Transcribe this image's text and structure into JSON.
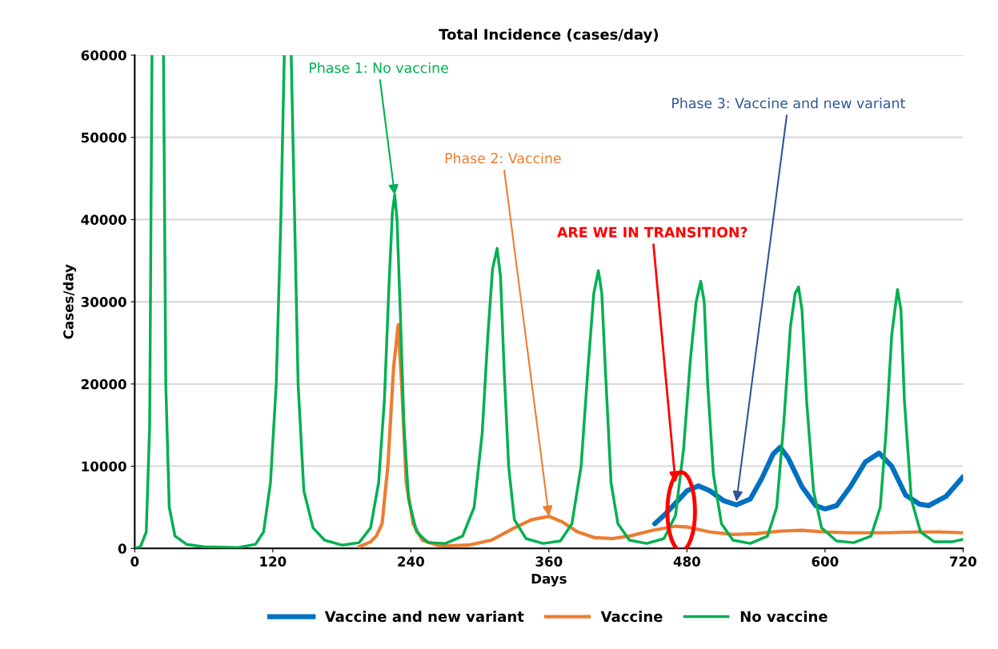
{
  "chart_data": {
    "type": "line",
    "title": "Total Incidence (cases/day)",
    "xlabel": "Days",
    "ylabel": "Cases/day",
    "xlim": [
      0,
      720
    ],
    "xticks": [
      0,
      120,
      240,
      360,
      480,
      600,
      720
    ],
    "ylim": [
      0,
      60000
    ],
    "yticks": [
      0,
      10000,
      20000,
      30000,
      40000,
      50000,
      60000
    ],
    "grid": "y",
    "legend": "bottom",
    "line_style": "solid",
    "marker": "none",
    "annotations": [
      {
        "text": "Phase 1: No vaccine",
        "x": 226,
        "y": 43000
      },
      {
        "text": "Phase 2: Vaccine",
        "x": 360,
        "y": 3900
      },
      {
        "text": "Phase 3: Vaccine and new variant",
        "x": 523,
        "y": 5700
      },
      {
        "text": "ARE WE IN TRANSITION?",
        "x": 470,
        "y": 8000
      }
    ],
    "series": [
      {
        "name": "Vaccine and new variant",
        "color": "#0070c0",
        "x": [
          452,
          460,
          470,
          480,
          490,
          500,
          512,
          523,
          535,
          545,
          555,
          561,
          568,
          580,
          592,
          600,
          610,
          622,
          635,
          647,
          658,
          670,
          682,
          690,
          705,
          720
        ],
        "values": [
          3000,
          4000,
          5500,
          7000,
          7600,
          7000,
          5800,
          5300,
          6000,
          8500,
          11500,
          12300,
          11000,
          7500,
          5200,
          4800,
          5200,
          7500,
          10500,
          11600,
          10000,
          6500,
          5400,
          5200,
          6300,
          8700
        ]
      },
      {
        "name": "Vaccine",
        "color": "#ed7d31",
        "x": [
          195,
          205,
          210,
          215,
          220,
          225,
          229,
          232,
          236,
          242,
          250,
          265,
          290,
          310,
          330,
          345,
          360,
          372,
          385,
          400,
          415,
          430,
          450,
          470,
          480,
          500,
          520,
          540,
          560,
          580,
          600,
          620,
          650,
          680,
          700,
          720
        ],
        "values": [
          200,
          800,
          1500,
          3000,
          10000,
          22000,
          27200,
          20000,
          8000,
          3000,
          1000,
          300,
          400,
          1000,
          2500,
          3500,
          3900,
          3200,
          2000,
          1300,
          1200,
          1500,
          2200,
          2700,
          2600,
          2000,
          1700,
          1800,
          2100,
          2200,
          2000,
          1900,
          1900,
          2000,
          2000,
          1900
        ]
      },
      {
        "name": "No vaccine",
        "color": "#00b050",
        "x": [
          0,
          5,
          10,
          13,
          15,
          20,
          25,
          27,
          30,
          35,
          45,
          60,
          90,
          105,
          112,
          118,
          123,
          127,
          130,
          133,
          136,
          139,
          142,
          147,
          155,
          165,
          180,
          195,
          205,
          212,
          217,
          221,
          224,
          226,
          228,
          231,
          234,
          238,
          245,
          255,
          270,
          285,
          295,
          302,
          307,
          311,
          315,
          318,
          321,
          325,
          330,
          340,
          355,
          370,
          380,
          388,
          394,
          399,
          403,
          406,
          409,
          414,
          420,
          430,
          445,
          460,
          470,
          477,
          483,
          488,
          492,
          495,
          498,
          503,
          510,
          520,
          535,
          550,
          558,
          564,
          570,
          574,
          577,
          580,
          584,
          590,
          597,
          610,
          625,
          640,
          648,
          653,
          658,
          663,
          666,
          669,
          675,
          683,
          695,
          710,
          720
        ],
        "values": [
          0,
          200,
          2000,
          15000,
          60000,
          null,
          60000,
          20000,
          5000,
          1500,
          500,
          200,
          100,
          500,
          2000,
          8000,
          20000,
          40000,
          60000,
          null,
          60000,
          40000,
          20000,
          7000,
          2500,
          1000,
          400,
          700,
          2500,
          8000,
          18000,
          32000,
          41000,
          43000,
          40000,
          28000,
          15000,
          6000,
          2000,
          700,
          600,
          1500,
          5000,
          14000,
          26000,
          34000,
          36500,
          33000,
          22000,
          10000,
          3500,
          1200,
          600,
          900,
          3000,
          10000,
          22000,
          31000,
          33800,
          31000,
          22000,
          8000,
          3000,
          1000,
          600,
          1200,
          4000,
          12000,
          23000,
          30000,
          32500,
          30000,
          20000,
          9000,
          3000,
          1000,
          600,
          1500,
          5000,
          15000,
          27000,
          31000,
          31800,
          29000,
          18000,
          7000,
          2500,
          900,
          700,
          1500,
          5000,
          14000,
          26000,
          31500,
          29000,
          18000,
          6000,
          2000,
          800,
          800,
          1100
        ]
      }
    ]
  }
}
